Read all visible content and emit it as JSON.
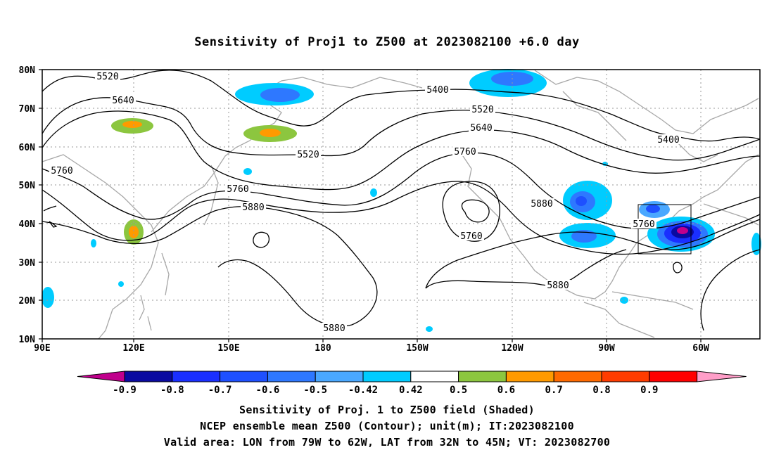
{
  "title": "Sensitivity of Proj1 to Z500 at 2023082100 +6.0 day",
  "axes": {
    "x_ticks": [
      "90E",
      "120E",
      "150E",
      "180",
      "150W",
      "120W",
      "90W",
      "60W"
    ],
    "y_ticks": [
      "80N",
      "70N",
      "60N",
      "50N",
      "40N",
      "30N",
      "20N",
      "10N"
    ]
  },
  "contour_labels": [
    "5520",
    "5640",
    "5760",
    "5760",
    "5880",
    "5520",
    "5400",
    "5520",
    "5640",
    "5760",
    "5760",
    "5880",
    "5400",
    "5880",
    "5760",
    "5880"
  ],
  "colorbar": {
    "labels": [
      "-0.9",
      "-0.8",
      "-0.7",
      "-0.6",
      "-0.5",
      "-0.42",
      "0.42",
      "0.5",
      "0.6",
      "0.7",
      "0.8",
      "0.9"
    ],
    "colors": [
      "#0a0aa0",
      "#1a2fff",
      "#1e50ff",
      "#2e78ff",
      "#4aa8ff",
      "#00ccff",
      "#ffffff",
      "#8cc63f",
      "#ff9a00",
      "#ff6a00",
      "#ff3c00",
      "#ff0000"
    ],
    "left_end_color": "#c0008c",
    "right_end_color": "#ff9ec8"
  },
  "captions": {
    "line1": "Sensitivity of Proj. 1 to Z500 field (Shaded)",
    "line2": "NCEP ensemble mean Z500 (Contour); unit(m); IT:2023082100",
    "line3": "Valid area: LON from 79W to 62W, LAT from 32N to 45N; VT: 2023082700"
  }
}
